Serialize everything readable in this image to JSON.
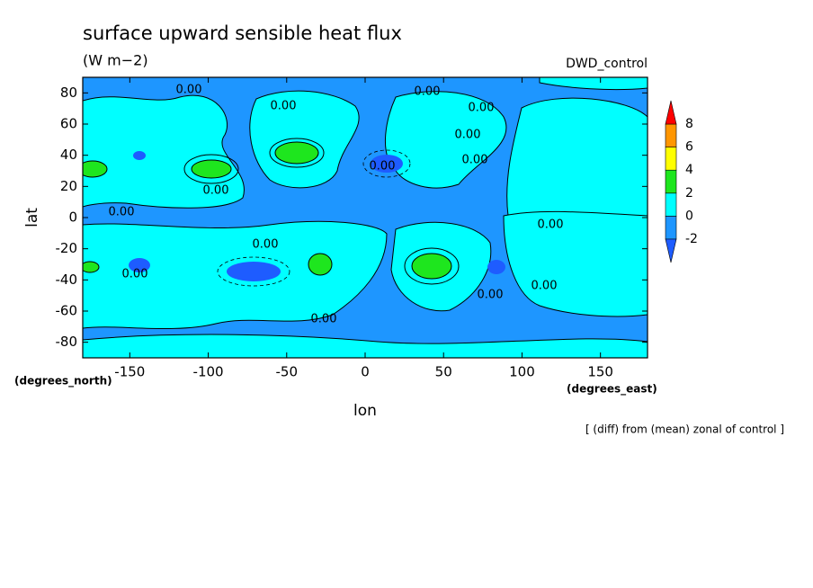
{
  "chart_data": {
    "type": "contour",
    "title": "surface upward sensible heat flux",
    "units": "(W m−2)",
    "dataset": "DWD_control",
    "xlabel": "lon",
    "ylabel": "lat",
    "xunits": "(degrees_east)",
    "yunits": "(degrees_north)",
    "note": "[ (diff) from (mean) zonal of control ]",
    "xlim": [
      -180,
      180
    ],
    "ylim": [
      -90,
      90
    ],
    "xticks": [
      -150,
      -100,
      -50,
      0,
      50,
      100,
      150
    ],
    "yticks": [
      -80,
      -60,
      -40,
      -20,
      0,
      20,
      40,
      60,
      80
    ],
    "levels": [
      -2,
      0,
      2,
      4,
      6,
      8
    ],
    "colors": [
      "#1e5cff",
      "#1e96ff",
      "#00ffff",
      "#1ee61e",
      "#ffff00",
      "#ff9600",
      "#ff0000"
    ],
    "contour_labels": [
      {
        "value": 0,
        "label": "0.00"
      },
      {
        "value": 0,
        "label": "0.00"
      },
      {
        "value": 0,
        "label": "0.00"
      },
      {
        "value": 0,
        "label": "0.00"
      },
      {
        "value": 0,
        "label": "0.00"
      },
      {
        "value": 0,
        "label": "0.00"
      },
      {
        "value": 0,
        "label": "0.00"
      },
      {
        "value": 0,
        "label": "0.00"
      },
      {
        "value": 0,
        "label": "0.00"
      },
      {
        "value": 0,
        "label": "0.00"
      },
      {
        "value": 0,
        "label": "0.00"
      },
      {
        "value": 0,
        "label": "0.00"
      },
      {
        "value": 0,
        "label": "0.00"
      },
      {
        "value": 0,
        "label": "0.00"
      },
      {
        "value": 0,
        "label": "0.00"
      }
    ]
  }
}
